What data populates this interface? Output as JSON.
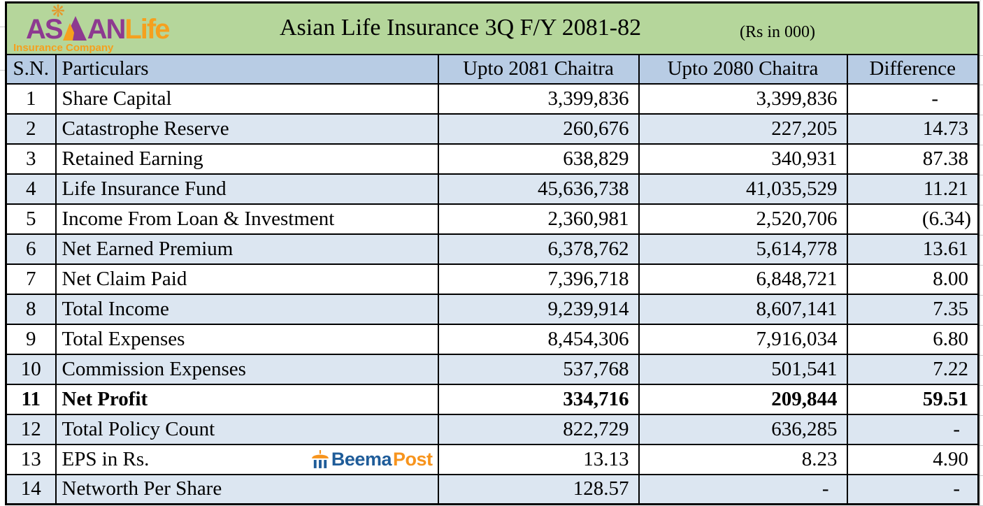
{
  "logo": {
    "word_part1": "AS",
    "word_part2": "AN",
    "word_part3": "Life",
    "subtitle": "Insurance Company"
  },
  "icons": {
    "knot_ornament": "❋",
    "logo_mark": "triangle-peaks",
    "beemapost_umbrella": "umbrella-pavilion"
  },
  "watermark": {
    "brand_part1": "Beema",
    "brand_part2": "Post"
  },
  "colors": {
    "title_band_green": "#b5d69b",
    "column_header_blue": "#b8cce4",
    "row_stripe_blue": "#dce6f1",
    "logo_purple": "#8d3a90",
    "logo_orange": "#f5a01e",
    "beema_blue": "#1f5c99",
    "beema_orange": "#f7941d",
    "border_black": "#000000"
  },
  "chart_data": {
    "type": "table",
    "title": "Asian Life Insurance 3Q F/Y 2081-82",
    "unit_note": "(Rs in 000)",
    "columns": [
      "S.N.",
      "Particulars",
      "Upto 2081 Chaitra",
      "Upto 2080 Chaitra",
      "Difference"
    ],
    "rows": [
      [
        "1",
        "Share Capital",
        "3,399,836",
        "3,399,836",
        "-"
      ],
      [
        "2",
        "Catastrophe Reserve",
        "260,676",
        "227,205",
        "14.73"
      ],
      [
        "3",
        "Retained Earning",
        "638,829",
        "340,931",
        "87.38"
      ],
      [
        "4",
        "Life Insurance Fund",
        "45,636,738",
        "41,035,529",
        "11.21"
      ],
      [
        "5",
        "Income From Loan & Investment",
        "2,360,981",
        "2,520,706",
        "(6.34)"
      ],
      [
        "6",
        "Net Earned Premium",
        "6,378,762",
        "5,614,778",
        "13.61"
      ],
      [
        "7",
        "Net Claim Paid",
        "7,396,718",
        "6,848,721",
        "8.00"
      ],
      [
        "8",
        "Total Income",
        "9,239,914",
        "8,607,141",
        "7.35"
      ],
      [
        "9",
        "Total Expenses",
        "8,454,306",
        "7,916,034",
        "6.80"
      ],
      [
        "10",
        "Commission Expenses",
        "537,768",
        "501,541",
        "7.22"
      ],
      [
        "11",
        "Net Profit",
        "334,716",
        "209,844",
        "59.51"
      ],
      [
        "12",
        "Total Policy Count",
        "822,729",
        "636,285",
        "-"
      ],
      [
        "13",
        "EPS in Rs.",
        "13.13",
        "8.23",
        "4.90"
      ],
      [
        "14",
        "Networth Per Share",
        "128.57",
        "-",
        "-"
      ]
    ],
    "emphasized_row": "Net Profit",
    "legend_position": "none",
    "grid": true
  }
}
